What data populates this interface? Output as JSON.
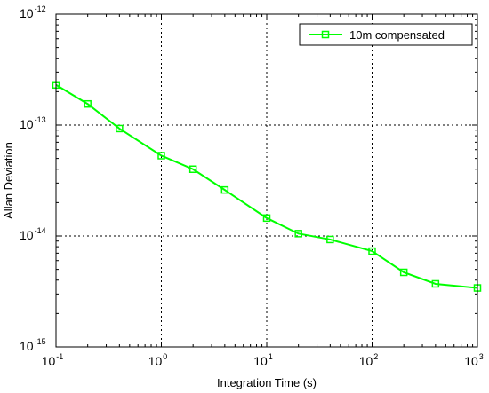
{
  "chart_data": {
    "type": "line",
    "xscale": "log",
    "yscale": "log",
    "xlim": [
      0.1,
      1000
    ],
    "ylim": [
      1e-15,
      1e-12
    ],
    "xlabel": "Integration Time (s)",
    "ylabel": "Allan Deviation",
    "x_ticks": [
      {
        "base": "10",
        "exp": "-1",
        "value": 0.1
      },
      {
        "base": "10",
        "exp": "0",
        "value": 1
      },
      {
        "base": "10",
        "exp": "1",
        "value": 10
      },
      {
        "base": "10",
        "exp": "2",
        "value": 100
      },
      {
        "base": "10",
        "exp": "3",
        "value": 1000
      }
    ],
    "y_ticks": [
      {
        "base": "10",
        "exp": "-15",
        "value": 1e-15
      },
      {
        "base": "10",
        "exp": "-14",
        "value": 1e-14
      },
      {
        "base": "10",
        "exp": "-13",
        "value": 1e-13
      },
      {
        "base": "10",
        "exp": "-12",
        "value": 1e-12
      }
    ],
    "grid": true,
    "legend_position": "top-right",
    "series": [
      {
        "name": "10m compensated",
        "color": "#00ff00",
        "marker": "square",
        "x": [
          0.1,
          0.2,
          0.4,
          1,
          2,
          4,
          10,
          20,
          40,
          100,
          200,
          400,
          1000
        ],
        "y": [
          2.3e-13,
          1.55e-13,
          9.3e-14,
          5.3e-14,
          4e-14,
          2.6e-14,
          1.45e-14,
          1.05e-14,
          9.3e-15,
          7.3e-15,
          4.7e-15,
          3.7e-15,
          3.4e-15
        ]
      }
    ]
  }
}
